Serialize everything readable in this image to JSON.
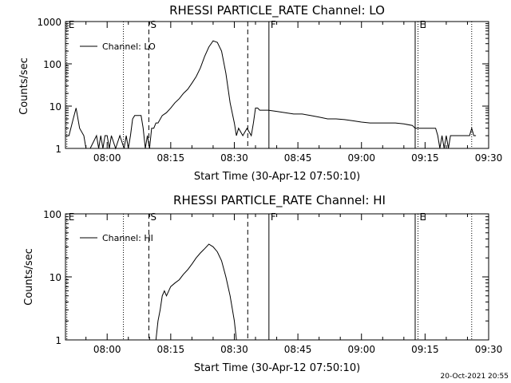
{
  "timestamp": "20-Oct-2021 20:55",
  "chart_data": [
    {
      "type": "line",
      "title": "RHESSI PARTICLE_RATE Channel: LO",
      "xlabel": "Start Time (30-Apr-12 07:50:10)",
      "ylabel": "Counts/sec",
      "xlim": [
        "07:50:10",
        "09:30:00"
      ],
      "ylim": [
        1,
        1000
      ],
      "yscale": "log",
      "xticks": [
        "08:00",
        "08:15",
        "08:30",
        "08:45",
        "09:00",
        "09:15",
        "09:30"
      ],
      "yticks": [
        "1",
        "10",
        "100",
        "1000"
      ],
      "legend": {
        "label": "Channel: LO",
        "placement": "top-left"
      },
      "markers": [
        {
          "label": "E",
          "time": "07:50:30",
          "style": "dotted"
        },
        {
          "label": "",
          "time": "08:03:50",
          "style": "dotted"
        },
        {
          "label": "S",
          "time": "08:09:50",
          "style": "dashed"
        },
        {
          "label": "",
          "time": "08:33:10",
          "style": "dashed"
        },
        {
          "label": "F",
          "time": "08:38:10",
          "style": "solid"
        },
        {
          "label": "",
          "time": "09:12:40",
          "style": "solid"
        },
        {
          "label": "E",
          "time": "09:13:20",
          "style": "dotted"
        },
        {
          "label": "",
          "time": "09:26:00",
          "style": "dotted"
        }
      ],
      "series": [
        {
          "x": [
            "07:50:10",
            "07:51:00",
            "07:52:00",
            "07:52:40",
            "07:53:30",
            "07:54:30",
            "07:55:00",
            "07:56:00",
            "07:57:30",
            "07:58:00",
            "07:58:30",
            "07:59:00",
            "07:59:30",
            "08:00:00",
            "08:00:30",
            "08:01:00",
            "08:02:00",
            "08:03:00",
            "08:04:00",
            "08:04:30",
            "08:05:00",
            "08:05:30",
            "08:06:00",
            "08:06:30",
            "08:07:00",
            "08:07:30",
            "08:08:00",
            "08:08:30",
            "08:09:00",
            "08:09:30",
            "08:10:00",
            "08:10:30",
            "08:11:00",
            "08:11:30",
            "08:12:00",
            "08:13:00",
            "08:14:00",
            "08:15:00",
            "08:16:00",
            "08:17:00",
            "08:18:00",
            "08:19:00",
            "08:20:00",
            "08:21:00",
            "08:22:00",
            "08:23:00",
            "08:24:00",
            "08:25:00",
            "08:26:00",
            "08:27:00",
            "08:28:00",
            "08:29:00",
            "08:30:00",
            "08:30:30",
            "08:31:00",
            "08:32:00",
            "08:33:00",
            "08:34:00",
            "08:34:30",
            "08:35:00",
            "08:35:30",
            "08:36:00",
            "08:38:00",
            "08:40:00",
            "08:42:00",
            "08:44:00",
            "08:46:00",
            "08:48:00",
            "08:50:00",
            "08:52:00",
            "08:54:00",
            "08:56:00",
            "08:58:00",
            "09:00:00",
            "09:02:00",
            "09:04:00",
            "09:06:00",
            "09:08:00",
            "09:10:00",
            "09:12:00",
            "09:12:40",
            "09:13:00",
            "09:14:00",
            "09:16:00",
            "09:17:30",
            "09:18:00",
            "09:18:30",
            "09:19:00",
            "09:19:30",
            "09:20:00",
            "09:20:30",
            "09:21:00",
            "09:22:00",
            "09:24:00",
            "09:25:30",
            "09:26:00",
            "09:26:30",
            "09:27:00"
          ],
          "y": [
            2,
            2,
            5,
            9,
            3,
            2,
            1,
            1,
            2,
            1,
            2,
            1,
            2,
            2,
            1,
            2,
            1,
            2,
            1,
            2,
            1,
            2,
            5,
            6,
            6,
            6,
            6,
            3,
            1,
            2,
            1,
            3,
            3,
            4,
            4,
            6,
            7,
            9,
            12,
            15,
            20,
            25,
            35,
            50,
            80,
            150,
            250,
            350,
            320,
            200,
            60,
            12,
            4,
            2,
            3,
            2,
            3,
            2,
            4,
            9,
            9,
            8,
            8,
            7.5,
            7,
            6.5,
            6.5,
            6,
            5.5,
            5,
            5,
            4.8,
            4.5,
            4.2,
            4,
            4,
            4,
            4,
            3.8,
            3.5,
            3,
            3,
            3,
            3,
            3,
            2,
            1,
            2,
            1,
            2,
            1,
            2,
            2,
            2,
            2,
            3,
            2,
            2
          ]
        }
      ]
    },
    {
      "type": "line",
      "title": "RHESSI PARTICLE_RATE Channel: HI",
      "xlabel": "Start Time (30-Apr-12 07:50:10)",
      "ylabel": "Counts/sec",
      "xlim": [
        "07:50:10",
        "09:30:00"
      ],
      "ylim": [
        1,
        100
      ],
      "yscale": "log",
      "xticks": [
        "08:00",
        "08:15",
        "08:30",
        "08:45",
        "09:00",
        "09:15",
        "09:30"
      ],
      "yticks": [
        "1",
        "10",
        "100"
      ],
      "legend": {
        "label": "Channel: HI",
        "placement": "top-left"
      },
      "markers": [
        {
          "label": "E",
          "time": "07:50:30",
          "style": "dotted"
        },
        {
          "label": "",
          "time": "08:03:50",
          "style": "dotted"
        },
        {
          "label": "S",
          "time": "08:09:50",
          "style": "dashed"
        },
        {
          "label": "",
          "time": "08:33:10",
          "style": "dashed"
        },
        {
          "label": "F",
          "time": "08:38:10",
          "style": "solid"
        },
        {
          "label": "",
          "time": "09:12:40",
          "style": "solid"
        },
        {
          "label": "E",
          "time": "09:13:20",
          "style": "dotted"
        },
        {
          "label": "",
          "time": "09:26:00",
          "style": "dotted"
        }
      ],
      "series": [
        {
          "x": [
            "08:11:30",
            "08:12:00",
            "08:12:30",
            "08:13:00",
            "08:13:30",
            "08:14:00",
            "08:15:00",
            "08:16:00",
            "08:17:00",
            "08:18:00",
            "08:19:00",
            "08:20:00",
            "08:21:00",
            "08:22:00",
            "08:23:00",
            "08:24:00",
            "08:25:00",
            "08:26:00",
            "08:27:00",
            "08:28:00",
            "08:29:00",
            "08:30:00",
            "08:30:30"
          ],
          "y": [
            1,
            2,
            3,
            5,
            6,
            5,
            7,
            8,
            9,
            11,
            13,
            16,
            20,
            24,
            28,
            33,
            30,
            25,
            18,
            10,
            5,
            2,
            1
          ]
        }
      ]
    }
  ]
}
